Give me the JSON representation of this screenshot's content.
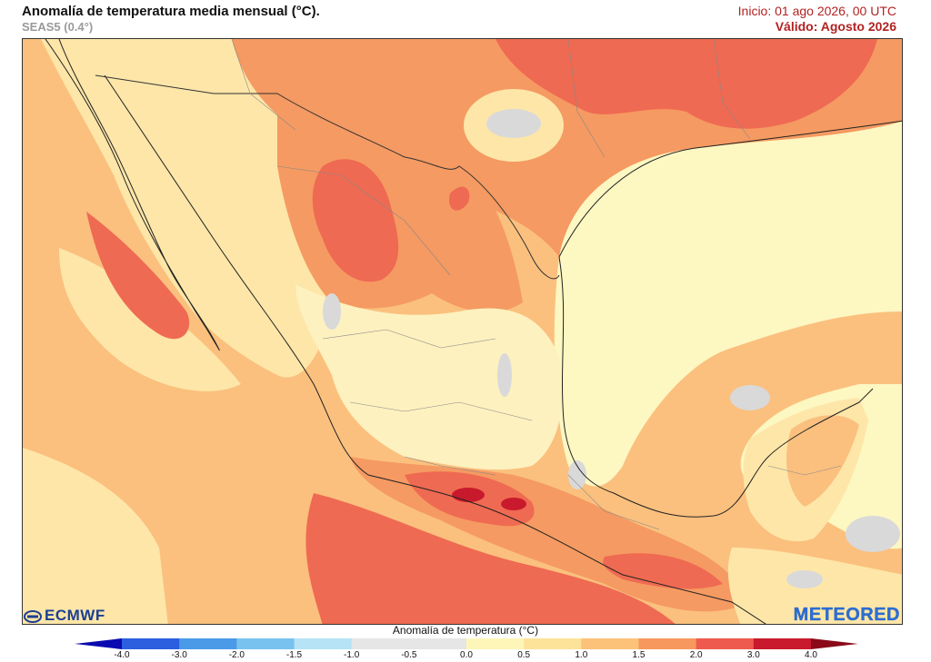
{
  "header": {
    "title": "Anomalía de temperatura media mensual (°C).",
    "subtitle": "SEAS5 (0.4°)",
    "init": "Inicio: 01 ago 2026, 00 UTC",
    "valid": "Válido: Agosto 2026"
  },
  "logos": {
    "left": "ECMWF",
    "right": "METEORED"
  },
  "colorbar": {
    "title": "Anomalía de temperatura (°C)",
    "ticks": [
      "-4.0",
      "-3.0",
      "-2.0",
      "-1.5",
      "-1.0",
      "-0.5",
      "0.0",
      "0.5",
      "1.0",
      "1.5",
      "2.0",
      "3.0",
      "4.0"
    ],
    "colors": [
      "#1a1ad8",
      "#2b5fe0",
      "#4a9ae8",
      "#78c2ef",
      "#b6e3f5",
      "#e6e6e6",
      "#e6e6e6",
      "#fdf6b8",
      "#fde29a",
      "#fcc27a",
      "#f7985e",
      "#ee5a4e",
      "#c81a2c"
    ],
    "min_color": "#0a0ab0",
    "max_color": "#8a0a1a"
  },
  "map": {
    "ocean_gulf_color": "#fdf7c2",
    "land_neutral_color": "#fdf1bf",
    "anomaly_colors": {
      "light": "#fde6a8",
      "moderate": "#fbc07e",
      "warm": "#f59a62",
      "hot": "#ef6a52",
      "very_hot": "#e03a3c",
      "extreme": "#c81a2c",
      "neutral_gray": "#d9d9d9"
    }
  }
}
